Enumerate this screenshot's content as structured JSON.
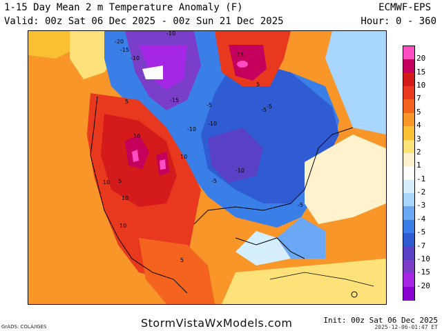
{
  "header": {
    "title": "1-15 Day Mean 2 m Temperature Anomaly (F)",
    "valid": "Valid: 00z Sat 06 Dec 2025 - 00z Sun 21 Dec 2025",
    "model": "ECMWF-EPS",
    "hour": "Hour: 0 - 360"
  },
  "colorbar": {
    "labels": [
      "20",
      "15",
      "10",
      "7",
      "5",
      "4",
      "3",
      "2",
      "1",
      "-1",
      "-2",
      "-3",
      "-4",
      "-5",
      "-7",
      "-10",
      "-15",
      "-20"
    ],
    "colors": [
      "#ff4dc4",
      "#c4005c",
      "#d41a1a",
      "#e8381e",
      "#f5641e",
      "#f9962a",
      "#fbbf34",
      "#fde27a",
      "#fff2cc",
      "#ffffff",
      "#d6efff",
      "#a8d6ff",
      "#6aa8f5",
      "#3a7ee8",
      "#2f5bd3",
      "#5a40c4",
      "#7b3ec8",
      "#a626e6",
      "#8a00d0"
    ]
  },
  "map": {
    "contour_labels": [
      "-20",
      "-15",
      "-10",
      "-10",
      "-15",
      "-10",
      "-10",
      "-10",
      "-5",
      "-5",
      "-5",
      "-5",
      "-5",
      "5",
      "5",
      "5",
      "10",
      "10",
      "10",
      "10",
      "10",
      "5",
      "15"
    ]
  },
  "footer": {
    "brand": "StormVistaWxModels.com",
    "credit": "GrADS: COLA/IGES",
    "init": "Init: 00z Sat 06 Dec 2025",
    "stamp": "2025-12-06-01:47 ET"
  }
}
